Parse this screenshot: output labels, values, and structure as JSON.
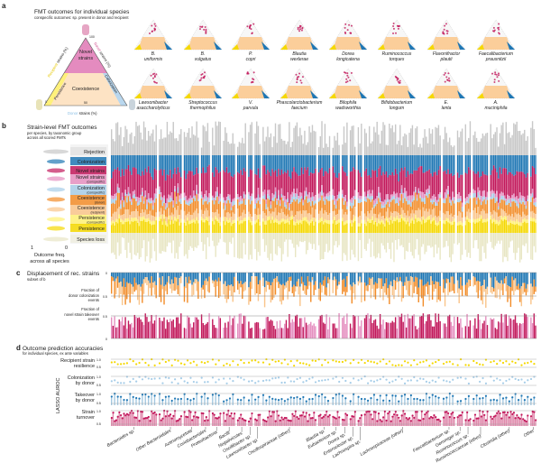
{
  "panel_a": {
    "letter": "a",
    "title": "FMT outcomes for individual species",
    "subtitle": "conspecific outcomes: sp. present in donor and recipient",
    "triangle": {
      "top_region": [
        "Novel",
        "strains"
      ],
      "middle_region": "Coexistence",
      "left_strip": "Persistence",
      "right_strip": "Colonization",
      "left_axis": [
        "Recipient",
        " strains (%)"
      ],
      "right_axis": [
        "Novel",
        " strains (%)"
      ],
      "bottom_axis": [
        "Donor",
        " strains (%)"
      ],
      "ticks": [
        "100",
        "50",
        "0"
      ]
    },
    "species": [
      [
        "B.",
        "uniformis"
      ],
      [
        "B.",
        "vulgatus"
      ],
      [
        "P.",
        "copri"
      ],
      [
        "Blautia",
        "wexlerae"
      ],
      [
        "Dorea",
        "longicatena"
      ],
      [
        "Ruminococcus",
        "torques"
      ],
      [
        "Flavonifractor",
        "plautii"
      ],
      [
        "Faecalibacterium",
        "prausnitzii"
      ],
      [
        "Lawsonibacter",
        "asaccharolyticus"
      ],
      [
        "Streptococcus",
        "thermophilus"
      ],
      [
        "V.",
        "parvula"
      ],
      [
        "Phascolarctobacterium",
        "faecium"
      ],
      [
        "Bilophila",
        "wadsworthia"
      ],
      [
        "Bifidobacterium",
        "longum"
      ],
      [
        "E.",
        "lenta"
      ],
      [
        "A.",
        "muciniphila"
      ]
    ]
  },
  "panel_b": {
    "letter": "b",
    "title": "Strain-level FMT outcomes",
    "subtitle1": "per species, by taxonomic group",
    "subtitle2": "across all scored FMTs",
    "outcomes": [
      {
        "label": "Rejection",
        "sub": "",
        "color": "#c8c8c8"
      },
      {
        "label": "Colonization",
        "sub": "",
        "color": "#1f77b4"
      },
      {
        "label": "Novel strains",
        "sub": "",
        "color": "#c2185b"
      },
      {
        "label": "Novel strains",
        "sub": "(conspecific)",
        "color": "#e58fc0"
      },
      {
        "label": "Colonization",
        "sub": "(conspecific)",
        "color": "#a6cde8"
      },
      {
        "label": "Coexistence",
        "sub": "(donor)",
        "color": "#f28c28"
      },
      {
        "label": "Coexistence",
        "sub": "(recipient)",
        "color": "#f9c48a"
      },
      {
        "label": "Persistence",
        "sub": "(conspecific)",
        "color": "#fff176"
      },
      {
        "label": "Persistence",
        "sub": "",
        "color": "#f5d800"
      },
      {
        "label": "Species loss",
        "sub": "",
        "color": "#e8e6c4"
      }
    ],
    "freq_axis": {
      "left": "1",
      "right": "0",
      "label1": "Outcome freq.",
      "label2": "across all species"
    }
  },
  "panel_c": {
    "letter": "c",
    "title": "Displacement of rec. strains",
    "subtitle": "subset of b",
    "top_label": [
      "Fraction of",
      "donor colonization",
      "events"
    ],
    "bottom_label": [
      "Fraction of",
      "novel strain takeover",
      "events"
    ],
    "ticks_top": [
      "0",
      "0.5"
    ],
    "ticks_bottom": [
      "0.5",
      "0"
    ]
  },
  "panel_d": {
    "letter": "d",
    "title": "Outcome prediction accuracies",
    "subtitle": "for individual species, ex ante variables",
    "ylabel": "LASSO AUROC",
    "rows": [
      {
        "label1": "Recipient strain",
        "label2": "resilience",
        "color": "#f5d800",
        "hi": "1.0",
        "lo": "0.5"
      },
      {
        "label1": "Colonization",
        "label2": "by donor",
        "color": "#a6cde8",
        "hi": "1.0",
        "lo": "0.5"
      },
      {
        "label1": "Takeover",
        "label2": "by donor",
        "color": "#1f77b4",
        "hi": "1.0",
        "lo": "0.5"
      },
      {
        "label1": "Strain",
        "label2": "turnover",
        "color": "#c2185b",
        "hi": "1.0",
        "lo": "0.5"
      }
    ]
  },
  "taxonomic_groups": [
    "Bacteroides sp.",
    "Other Bacteroidales",
    "Actinomycetota",
    "Coriobacteriales",
    "Proteobacteria",
    "Bacilli",
    "Negativicutes",
    "Oscillibacter sp.",
    "Lawsonibacter sp.",
    "Oscillospiraceae (other)",
    "Blautia sp.",
    "Eubacterium sp.",
    "Dorea sp.",
    "Enterocloster sp.",
    "Lachnospira sp.",
    "Lachnospiraceae (other)",
    "Faecalibacterium sp.",
    "Gemmiger sp.",
    "Ruminococcus sp.",
    "Ruminococcaceae (other)",
    "Clostridia (other)",
    "Other"
  ]
}
